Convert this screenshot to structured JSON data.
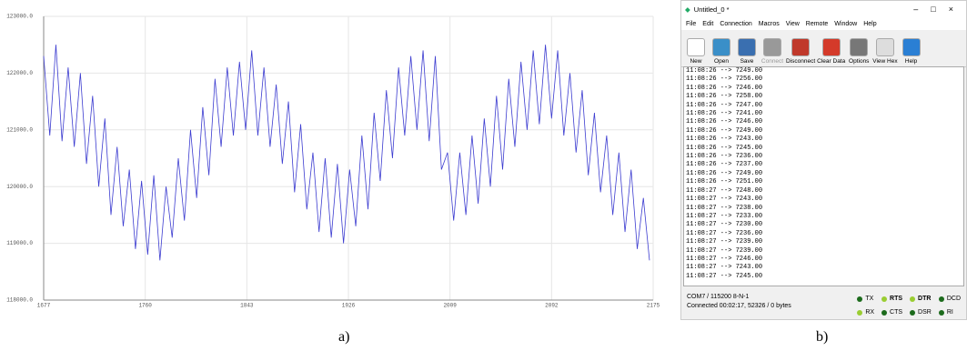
{
  "chart_data": {
    "type": "line",
    "x": [
      1677,
      1682,
      1687,
      1692,
      1697,
      1702,
      1707,
      1712,
      1717,
      1722,
      1727,
      1732,
      1737,
      1742,
      1747,
      1752,
      1757,
      1762,
      1767,
      1772,
      1777,
      1782,
      1787,
      1792,
      1797,
      1802,
      1807,
      1812,
      1817,
      1822,
      1827,
      1832,
      1837,
      1842,
      1847,
      1852,
      1857,
      1862,
      1867,
      1872,
      1877,
      1882,
      1887,
      1892,
      1897,
      1902,
      1907,
      1912,
      1917,
      1922,
      1927,
      1932,
      1937,
      1942,
      1947,
      1952,
      1957,
      1962,
      1967,
      1972,
      1977,
      1982,
      1987,
      1992,
      1997,
      2002,
      2007,
      2012,
      2017,
      2022,
      2027,
      2032,
      2037,
      2042,
      2047,
      2052,
      2057,
      2062,
      2067,
      2072,
      2077,
      2082,
      2087,
      2092,
      2097,
      2102,
      2107,
      2112,
      2117,
      2122,
      2127,
      2132,
      2137,
      2142,
      2147,
      2152,
      2157,
      2162,
      2167,
      2172
    ],
    "series": [
      {
        "color": "#3c3cd0",
        "values": [
          122300,
          120900,
          122500,
          120800,
          122100,
          120700,
          122000,
          120400,
          121600,
          120000,
          121200,
          119500,
          120700,
          119300,
          120300,
          118900,
          120100,
          118800,
          120200,
          118700,
          120000,
          119100,
          120500,
          119400,
          121000,
          119800,
          121400,
          120200,
          121900,
          120700,
          122100,
          120900,
          122200,
          121000,
          122400,
          120900,
          122100,
          120700,
          121800,
          120400,
          121500,
          119900,
          121100,
          119600,
          120600,
          119200,
          120500,
          119100,
          120400,
          119000,
          120300,
          119300,
          120900,
          119600,
          121300,
          120100,
          121700,
          120500,
          122100,
          120900,
          122300,
          121000,
          122400,
          120800,
          122300,
          120300,
          120600,
          119400,
          120600,
          119500,
          120900,
          119700,
          121200,
          120000,
          121600,
          120300,
          121900,
          120700,
          122200,
          121000,
          122400,
          121100,
          122500,
          121200,
          122400,
          120900,
          122000,
          120600,
          121700,
          120200,
          121300,
          119900,
          120900,
          119500,
          120600,
          119200,
          120300,
          118900,
          119800,
          118700
        ]
      }
    ],
    "xlim": [
      1677,
      2175
    ],
    "xticks": [
      1677,
      1760,
      1843,
      1926,
      2009,
      2092,
      2175
    ],
    "ylim": [
      118000,
      123000
    ],
    "yticks": [
      {
        "value": 118000,
        "label": "118000.0"
      },
      {
        "value": 119000,
        "label": "119000.0"
      },
      {
        "value": 120000,
        "label": "120000.0"
      },
      {
        "value": 121000,
        "label": "121000.0"
      },
      {
        "value": 122000,
        "label": "122000.0"
      },
      {
        "value": 123000,
        "label": "123000.0"
      }
    ],
    "grid": true
  },
  "captions": [
    "a)",
    "b)"
  ],
  "terminal": {
    "title": "Untitled_0 *",
    "menu": [
      "File",
      "Edit",
      "Connection",
      "Macros",
      "View",
      "Remote",
      "Window",
      "Help"
    ],
    "toolbar": [
      "New",
      "Open",
      "Save",
      "Connect",
      "Disconnect",
      "Clear Data",
      "Options",
      "View Hex",
      "Help"
    ],
    "log": [
      "11:08:26 --> 7249.00",
      "11:08:26 --> 7256.00",
      "11:08:26 --> 7246.00",
      "11:08:26 --> 7258.00",
      "11:08:26 --> 7247.00",
      "11:08:26 --> 7241.00",
      "11:08:26 --> 7246.00",
      "11:08:26 --> 7249.00",
      "11:08:26 --> 7243.00",
      "11:08:26 --> 7245.00",
      "11:08:26 --> 7236.00",
      "11:08:26 --> 7237.00",
      "11:08:26 --> 7249.00",
      "11:08:26 --> 7251.00",
      "11:08:27 --> 7248.00",
      "11:08:27 --> 7243.00",
      "11:08:27 --> 7238.00",
      "11:08:27 --> 7233.00",
      "11:08:27 --> 7230.00",
      "11:08:27 --> 7236.00",
      "11:08:27 --> 7239.00",
      "11:08:27 --> 7239.00",
      "11:08:27 --> 7246.00",
      "11:08:27 --> 7243.00",
      "11:08:27 --> 7245.00"
    ],
    "status": {
      "port": "COM7 / 115200 8-N-1",
      "connection": "Connected 00:02:17, 52326 / 0 bytes"
    },
    "indicators": [
      "TX",
      "RTS",
      "DTR",
      "DCD",
      "RX",
      "CTS",
      "DSR",
      "RI"
    ]
  }
}
